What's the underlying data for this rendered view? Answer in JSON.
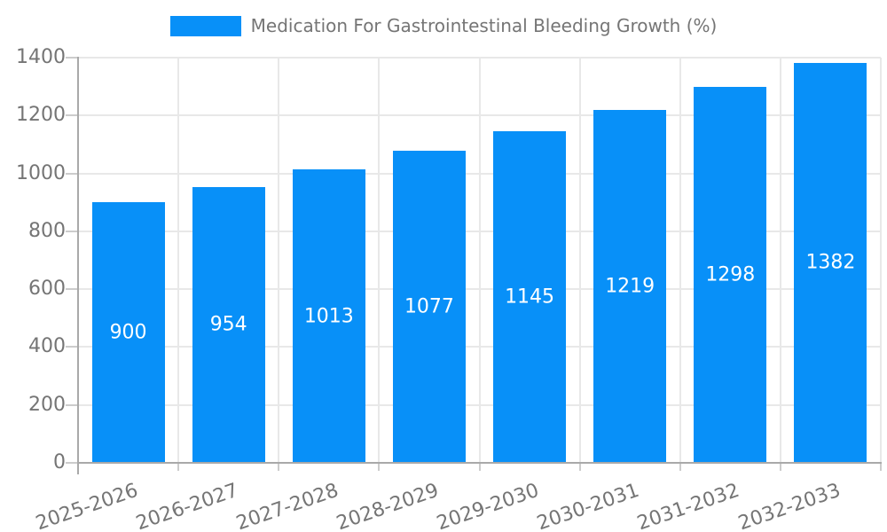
{
  "chart_data": {
    "type": "bar",
    "title": "Medication For Gastrointestinal Bleeding Growth (%)",
    "categories": [
      "2025-2026",
      "2026-2027",
      "2027-2028",
      "2028-2029",
      "2029-2030",
      "2030-2031",
      "2031-2032",
      "2032-2033"
    ],
    "values": [
      900,
      954,
      1013,
      1077,
      1145,
      1219,
      1298,
      1382
    ],
    "series": [
      {
        "name": "Medication For Gastrointestinal Bleeding Growth (%)",
        "values": [
          900,
          954,
          1013,
          1077,
          1145,
          1219,
          1298,
          1382
        ]
      }
    ],
    "xlabel": "",
    "ylabel": "",
    "ylim": [
      0,
      1400
    ],
    "yticks": [
      0,
      200,
      400,
      600,
      800,
      1000,
      1200,
      1400
    ],
    "grid": true,
    "legend_position": "top-center",
    "colors": {
      "bar": "#0890f8",
      "bar_value_label": "#ffffff",
      "axis_text": "#757575",
      "gridline": "#e8e8e8",
      "tick": "#cccccc",
      "axis_line": "#a9a9a9"
    }
  }
}
